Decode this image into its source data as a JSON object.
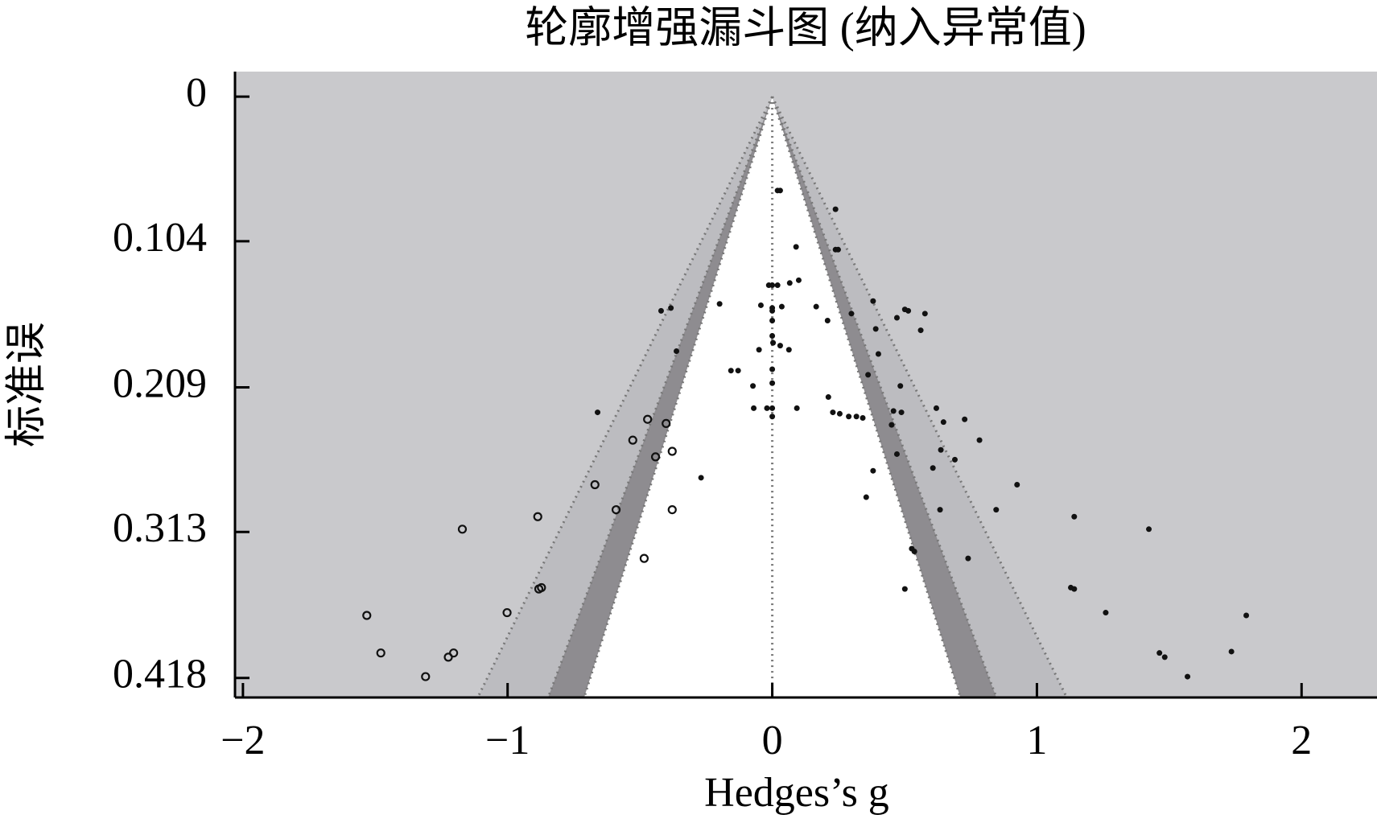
{
  "chart_data": {
    "type": "funnel",
    "title": "轮廓增强漏斗图 (纳入异常值)",
    "x_label": "Hedges’s g",
    "y_label": "标准误",
    "xlim": [
      -2.03,
      2.285
    ],
    "ylim": [
      -0.018,
      0.432
    ],
    "y_inverted": true,
    "xticks": [
      {
        "value": -2,
        "label": "−2"
      },
      {
        "value": -1,
        "label": "−1"
      },
      0,
      1,
      2
    ],
    "yticks": [
      0,
      0.104,
      0.209,
      0.313,
      0.418
    ],
    "background": "#c9c9cc",
    "contours": [
      {
        "z": 2.576,
        "color": "#bcbcc0"
      },
      {
        "z": 1.96,
        "color": "#8e8c90"
      },
      {
        "z": 1.645,
        "color": "#ffffff"
      }
    ],
    "series": [
      {
        "marker": "filled",
        "color": "#111111",
        "x": [
          0.02,
          0.03,
          0.239,
          0.239,
          0.249,
          0.09,
          -0.013,
          0,
          0.02,
          0.066,
          0.1,
          -0.043,
          0,
          0,
          0.036,
          -0.199,
          -0.42,
          -0.383,
          0.166,
          0.381,
          0.299,
          0.501,
          0.514,
          0.577,
          0.471,
          0.209,
          0,
          0.391,
          0.561,
          0,
          0.003,
          0.03,
          -0.05,
          0.063,
          0.401,
          -0.362,
          0,
          -0.156,
          -0.129,
          0.362,
          -0.073,
          0.484,
          0,
          0.212,
          -0.02,
          0,
          -0.07,
          0.093,
          0.229,
          0.255,
          0.289,
          0.318,
          0.342,
          0,
          0.458,
          0.488,
          0.62,
          0.647,
          0.727,
          -0.66,
          0.451,
          0.783,
          0.637,
          0.471,
          0.69,
          0.607,
          0.381,
          -0.269,
          0.925,
          0.355,
          0.634,
          0.846,
          1.141,
          1.423,
          0.527,
          0.537,
          0.74,
          0.501,
          1.128,
          1.141,
          1.26,
          1.791,
          1.463,
          1.483,
          1.735,
          1.569
        ],
        "values": [
          0.0675,
          0.0675,
          0.081,
          0.11,
          0.11,
          0.108,
          0.1356,
          0.1356,
          0.1356,
          0.134,
          0.132,
          0.15,
          0.152,
          0.154,
          0.151,
          0.149,
          0.154,
          0.152,
          0.151,
          0.147,
          0.156,
          0.153,
          0.154,
          0.156,
          0.159,
          0.161,
          0.161,
          0.167,
          0.168,
          0.172,
          0.177,
          0.179,
          0.182,
          0.182,
          0.185,
          0.183,
          0.196,
          0.197,
          0.197,
          0.2,
          0.208,
          0.208,
          0.206,
          0.216,
          0.224,
          0.224,
          0.224,
          0.224,
          0.227,
          0.228,
          0.23,
          0.23,
          0.231,
          0.23,
          0.226,
          0.227,
          0.224,
          0.234,
          0.232,
          0.227,
          0.236,
          0.247,
          0.254,
          0.257,
          0.261,
          0.267,
          0.269,
          0.274,
          0.279,
          0.288,
          0.297,
          0.297,
          0.302,
          0.311,
          0.325,
          0.327,
          0.332,
          0.354,
          0.353,
          0.354,
          0.371,
          0.373,
          0.4,
          0.403,
          0.399,
          0.417
        ]
      },
      {
        "marker": "open",
        "color": "#111111",
        "x": [
          -0.471,
          -0.401,
          -0.527,
          -0.378,
          -0.441,
          -0.67,
          -0.59,
          -0.378,
          -0.886,
          -1.171,
          -0.484,
          -0.882,
          -0.872,
          -1.002,
          -1.532,
          -1.479,
          -1.224,
          -1.204,
          -1.31
        ],
        "values": [
          0.232,
          0.235,
          0.247,
          0.255,
          0.259,
          0.279,
          0.297,
          0.297,
          0.302,
          0.311,
          0.332,
          0.354,
          0.353,
          0.371,
          0.373,
          0.4,
          0.403,
          0.4,
          0.417
        ]
      }
    ]
  }
}
